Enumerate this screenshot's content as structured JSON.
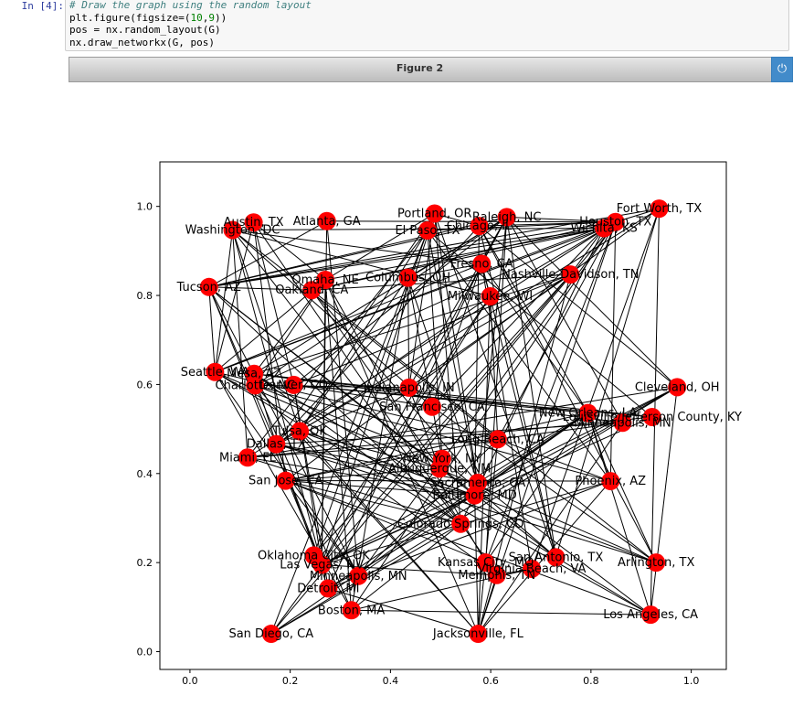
{
  "cell": {
    "prompt": "In [4]:",
    "code_comment": "# Draw the graph using the random layout",
    "code_lines": [
      {
        "pre": "plt.figure(figsize=(",
        "n1": "10",
        "mid": ",",
        "n2": "9",
        "post": "))"
      },
      {
        "pre": "pos = nx.random_layout(G)",
        "n1": "",
        "mid": "",
        "n2": "",
        "post": ""
      },
      {
        "pre": "nx.draw_networkx(G, pos)",
        "n1": "",
        "mid": "",
        "n2": "",
        "post": ""
      }
    ]
  },
  "figure": {
    "title": "Figure 2",
    "power_icon": "power-icon",
    "node_color": "#ff0000",
    "edge_color": "#000000"
  },
  "chart_data": {
    "type": "scatter",
    "title": "",
    "xlabel": "",
    "ylabel": "",
    "xlim": [
      -0.06,
      1.07
    ],
    "ylim": [
      -0.04,
      1.1
    ],
    "xticks": [
      0.0,
      0.2,
      0.4,
      0.6,
      0.8,
      1.0
    ],
    "yticks": [
      0.0,
      0.2,
      0.4,
      0.6,
      0.8,
      1.0
    ],
    "xtick_labels": [
      "0.0",
      "0.2",
      "0.4",
      "0.6",
      "0.8",
      "1.0"
    ],
    "ytick_labels": [
      "0.0",
      "0.2",
      "0.4",
      "0.6",
      "0.8",
      "1.0"
    ],
    "grid": false,
    "nodes": [
      {
        "label": "Washington, DC",
        "x": 0.085,
        "y": 0.947
      },
      {
        "label": "Austin, TX",
        "x": 0.127,
        "y": 0.964
      },
      {
        "label": "Atlanta, GA",
        "x": 0.273,
        "y": 0.967
      },
      {
        "label": "Portland, OR",
        "x": 0.488,
        "y": 0.984
      },
      {
        "label": "Raleigh, NC",
        "x": 0.632,
        "y": 0.976
      },
      {
        "label": "El Paso, TX",
        "x": 0.474,
        "y": 0.946
      },
      {
        "label": "Chicago, IL",
        "x": 0.577,
        "y": 0.956
      },
      {
        "label": "Fort Worth, TX",
        "x": 0.936,
        "y": 0.995
      },
      {
        "label": "Houston, TX",
        "x": 0.849,
        "y": 0.965
      },
      {
        "label": "Wichita, KS",
        "x": 0.826,
        "y": 0.951
      },
      {
        "label": "Tucson, AZ",
        "x": 0.038,
        "y": 0.819
      },
      {
        "label": "Omaha, NE",
        "x": 0.27,
        "y": 0.835
      },
      {
        "label": "Columbus, OH",
        "x": 0.435,
        "y": 0.84
      },
      {
        "label": "Oakland, CA",
        "x": 0.243,
        "y": 0.812
      },
      {
        "label": "Fresno, CA",
        "x": 0.582,
        "y": 0.871
      },
      {
        "label": "Nashville-Davidson, TN",
        "x": 0.759,
        "y": 0.847
      },
      {
        "label": "Milwaukee, WI",
        "x": 0.599,
        "y": 0.798
      },
      {
        "label": "Seattle, WA",
        "x": 0.05,
        "y": 0.628
      },
      {
        "label": "Mesa, AZ",
        "x": 0.128,
        "y": 0.624
      },
      {
        "label": "Charlotte, NC",
        "x": 0.13,
        "y": 0.598
      },
      {
        "label": "Denver, CO",
        "x": 0.207,
        "y": 0.599
      },
      {
        "label": "Indianapolis, IN",
        "x": 0.437,
        "y": 0.593
      },
      {
        "label": "San Francisco, CA",
        "x": 0.483,
        "y": 0.55
      },
      {
        "label": "Cleveland, OH",
        "x": 0.972,
        "y": 0.594
      },
      {
        "label": "New Orleans, LA",
        "x": 0.794,
        "y": 0.536
      },
      {
        "label": "Louisville/Jefferson County, KY",
        "x": 0.922,
        "y": 0.527
      },
      {
        "label": "Minneapolis, MN",
        "x": 0.863,
        "y": 0.514
      },
      {
        "label": "Tulsa, OK",
        "x": 0.219,
        "y": 0.495
      },
      {
        "label": "Dallas, TX",
        "x": 0.172,
        "y": 0.466
      },
      {
        "label": "Miami, FL",
        "x": 0.115,
        "y": 0.436
      },
      {
        "label": "Long Beach, CA",
        "x": 0.614,
        "y": 0.477
      },
      {
        "label": "New York, NY",
        "x": 0.503,
        "y": 0.433
      },
      {
        "label": "Albuquerque, NM",
        "x": 0.498,
        "y": 0.411
      },
      {
        "label": "San Jose, CA",
        "x": 0.191,
        "y": 0.384
      },
      {
        "label": "Sacramento, CA",
        "x": 0.574,
        "y": 0.379
      },
      {
        "label": "Baltimore, MD",
        "x": 0.568,
        "y": 0.351
      },
      {
        "label": "Phoenix, AZ",
        "x": 0.839,
        "y": 0.383
      },
      {
        "label": "Colorado Springs, CO",
        "x": 0.54,
        "y": 0.287
      },
      {
        "label": "Oklahoma City, OK",
        "x": 0.247,
        "y": 0.216
      },
      {
        "label": "Las Vegas, NV",
        "x": 0.263,
        "y": 0.195
      },
      {
        "label": "Minneapolis, MN",
        "x": 0.336,
        "y": 0.17
      },
      {
        "label": "Detroit, MI",
        "x": 0.276,
        "y": 0.142
      },
      {
        "label": "Kansas City, MO",
        "x": 0.59,
        "y": 0.2
      },
      {
        "label": "San Antonio, TX",
        "x": 0.73,
        "y": 0.212
      },
      {
        "label": "Virginia Beach, VA",
        "x": 0.682,
        "y": 0.186
      },
      {
        "label": "Memphis, TN",
        "x": 0.612,
        "y": 0.172
      },
      {
        "label": "Arlington, TX",
        "x": 0.93,
        "y": 0.2
      },
      {
        "label": "Boston, MA",
        "x": 0.322,
        "y": 0.093
      },
      {
        "label": "Los Angeles, CA",
        "x": 0.919,
        "y": 0.083
      },
      {
        "label": "San Diego, CA",
        "x": 0.162,
        "y": 0.04
      },
      {
        "label": "Jacksonville, FL",
        "x": 0.575,
        "y": 0.04
      }
    ]
  }
}
